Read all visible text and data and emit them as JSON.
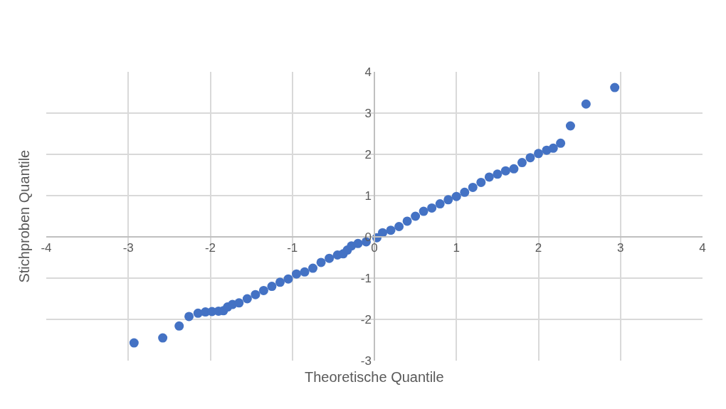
{
  "chart_data": {
    "type": "scatter",
    "xlabel": "Theoretische Quantile",
    "ylabel": "Stichproben Quantile",
    "x": [
      -2.93,
      -2.58,
      -2.38,
      -2.26,
      -2.15,
      -2.06,
      -1.98,
      -1.9,
      -1.84,
      -1.79,
      -1.73,
      -1.65,
      -1.55,
      -1.45,
      -1.35,
      -1.25,
      -1.15,
      -1.05,
      -0.95,
      -0.85,
      -0.75,
      -0.65,
      -0.55,
      -0.45,
      -0.38,
      -0.33,
      -0.28,
      -0.2,
      -0.1,
      0.03,
      0.1,
      0.2,
      0.3,
      0.4,
      0.5,
      0.6,
      0.7,
      0.8,
      0.9,
      1.0,
      1.1,
      1.2,
      1.3,
      1.4,
      1.5,
      1.6,
      1.7,
      1.8,
      1.9,
      2.0,
      2.1,
      2.18,
      2.27,
      2.39,
      2.58,
      2.93
    ],
    "series": [
      {
        "color": "#4472c4",
        "values": [
          -2.57,
          -2.45,
          -2.16,
          -1.93,
          -1.85,
          -1.82,
          -1.81,
          -1.8,
          -1.79,
          -1.7,
          -1.64,
          -1.6,
          -1.5,
          -1.4,
          -1.3,
          -1.2,
          -1.1,
          -1.02,
          -0.9,
          -0.85,
          -0.76,
          -0.62,
          -0.52,
          -0.44,
          -0.41,
          -0.32,
          -0.22,
          -0.16,
          -0.12,
          -0.02,
          0.1,
          0.16,
          0.25,
          0.38,
          0.5,
          0.62,
          0.7,
          0.8,
          0.9,
          0.98,
          1.08,
          1.2,
          1.32,
          1.45,
          1.52,
          1.6,
          1.65,
          1.8,
          1.92,
          2.02,
          2.1,
          2.15,
          2.27,
          2.69,
          3.22,
          3.62
        ]
      }
    ],
    "xlim": [
      -4,
      4
    ],
    "xticks": [
      -4,
      -3,
      -2,
      -1,
      0,
      1,
      2,
      3,
      4
    ],
    "ylim": [
      -3,
      4
    ],
    "yticks": [
      -3,
      -2,
      -1,
      0,
      1,
      2,
      3,
      4
    ],
    "grid": true,
    "marker": "circle",
    "legend": false
  }
}
